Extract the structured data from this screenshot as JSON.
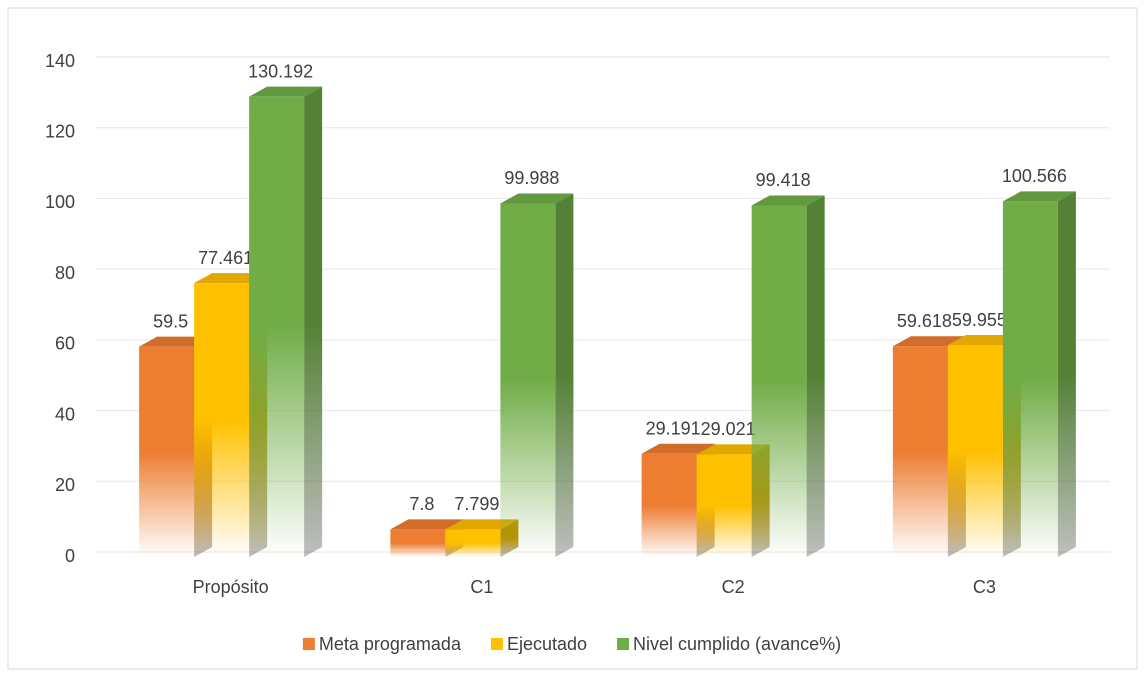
{
  "chart_data": {
    "type": "bar3d",
    "categories": [
      "Propósito",
      "C1",
      "C2",
      "C3"
    ],
    "series": [
      {
        "name": "Meta programada",
        "color": "#ed7d31",
        "values": [
          59.5,
          7.8,
          29.191,
          59.618
        ]
      },
      {
        "name": "Ejecutado",
        "color": "#ffc000",
        "values": [
          77.461,
          7.799,
          29.021,
          59.955
        ]
      },
      {
        "name": "Nivel cumplido (avance%)",
        "color": "#70ad47",
        "values": [
          130.192,
          99.988,
          99.418,
          100.566
        ]
      }
    ],
    "ylim": [
      0,
      140
    ],
    "yticks": [
      0,
      20,
      40,
      60,
      80,
      100,
      120,
      140
    ],
    "grid": true,
    "legend": "bottom"
  }
}
